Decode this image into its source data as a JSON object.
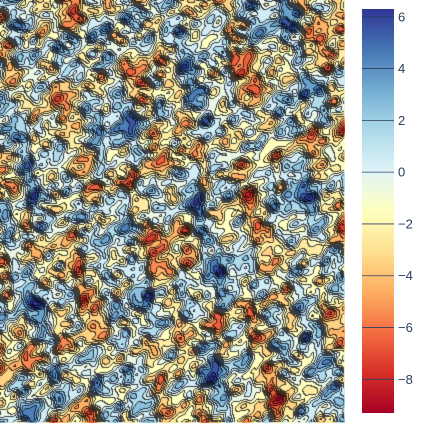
{
  "chart_data": {
    "type": "heatmap",
    "subtype": "filled-contour",
    "title": "",
    "xlabel": "",
    "ylabel": "",
    "axes_visible": false,
    "grid": false,
    "contour_lines": true,
    "contour_levels": [
      -9,
      -8,
      -7,
      -6,
      -5,
      -4,
      -3,
      -2,
      -1,
      0,
      1,
      2,
      3,
      4,
      5,
      6
    ],
    "colorbar": {
      "placement": "right",
      "zmin": -9.3,
      "zmax": 6.3,
      "ticks": [
        6,
        4,
        2,
        0,
        -2,
        -4,
        -6,
        -8
      ],
      "tick_labels": [
        "6",
        "4",
        "2",
        "0",
        "−2",
        "−4",
        "−6",
        "−8"
      ],
      "colorscale": "RdYlBu",
      "colors": [
        "#a50026",
        "#d73027",
        "#f46d43",
        "#fdae61",
        "#fee090",
        "#ffffbf",
        "#e0f3f8",
        "#abd9e9",
        "#74add1",
        "#4575b4",
        "#313695"
      ]
    },
    "pattern_description_values": {
      "dominant_range": [
        -4,
        3
      ],
      "min_approx": -9,
      "max_approx": 6
    }
  }
}
